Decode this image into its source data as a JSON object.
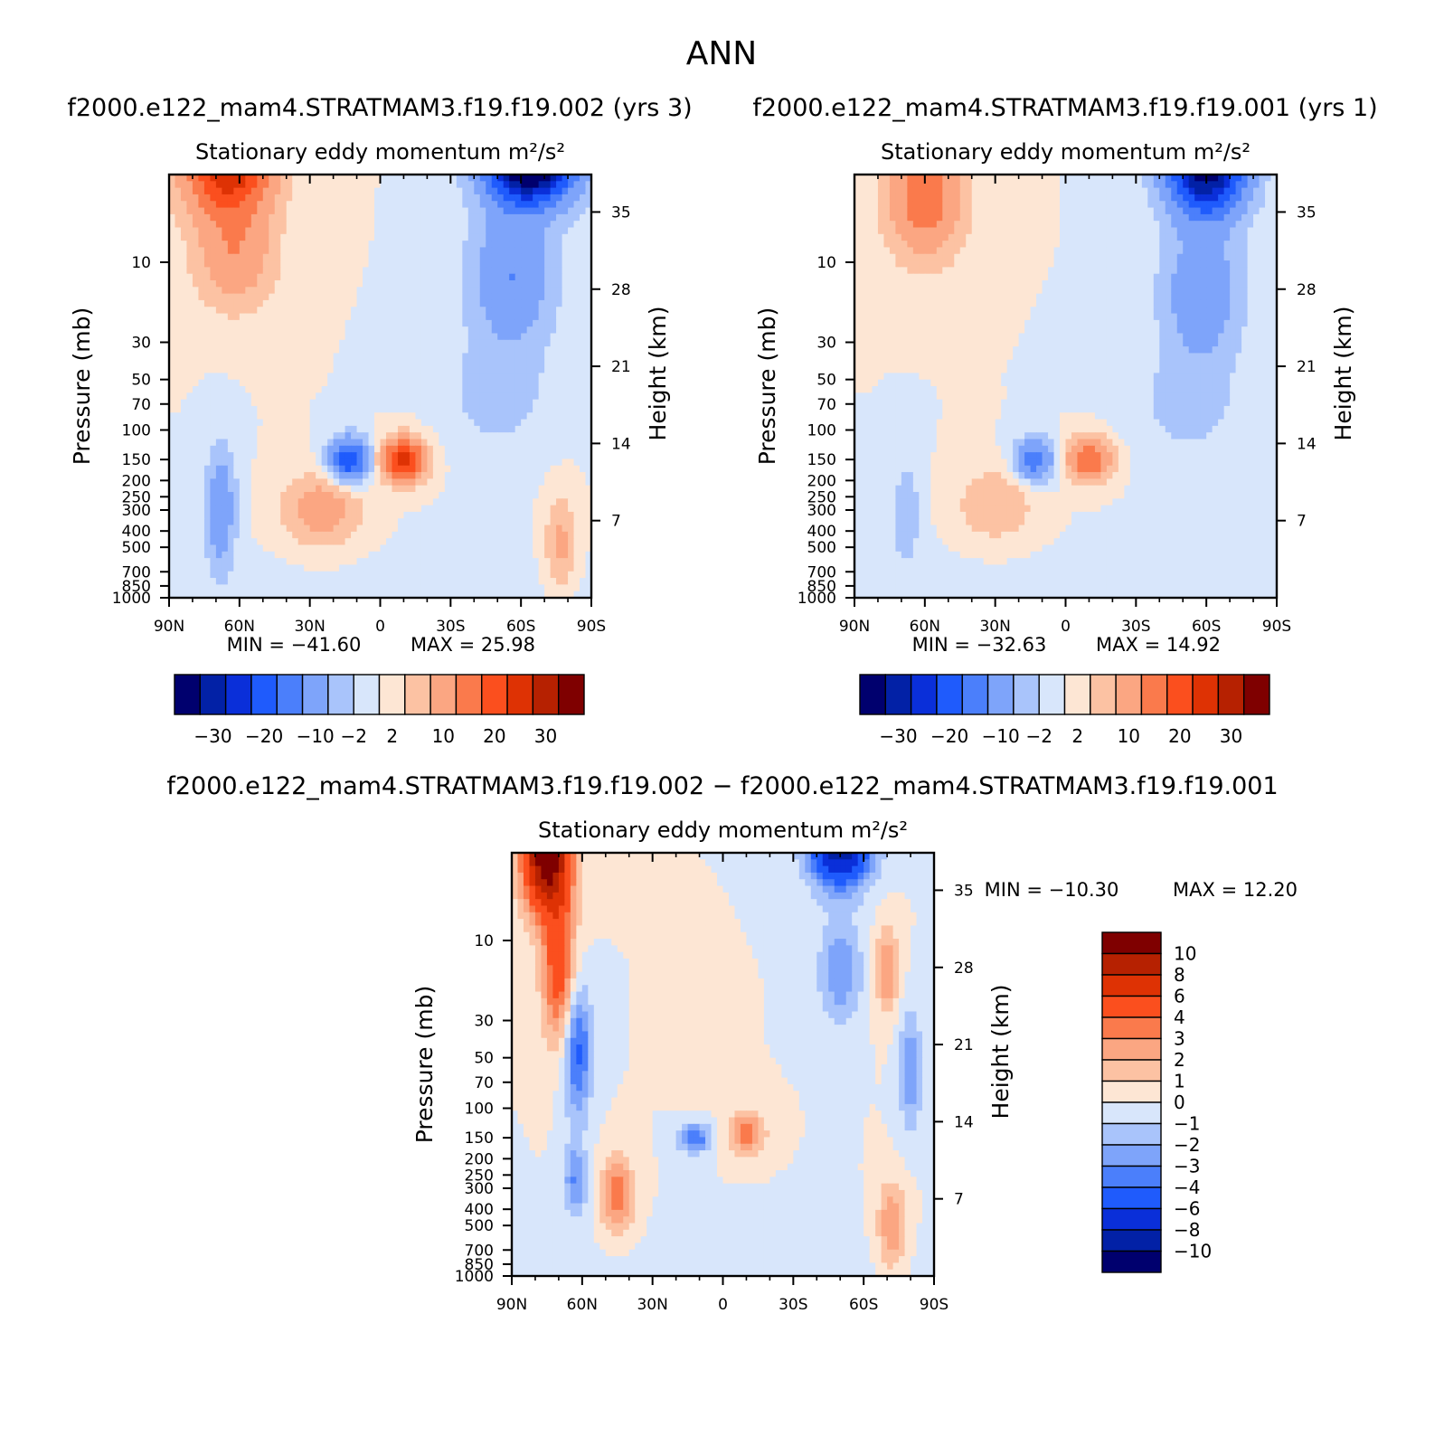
{
  "figure_title": "ANN",
  "chart_data": [
    {
      "type": "heatmap",
      "case_title": "f2000.e122_mam4.STRATMAM3.f19.f19.002  (yrs  3)",
      "title": "Stationary  eddy  momentum",
      "units": "m²/s²",
      "ylabel": "Pressure  (mb)",
      "y2label": "Height  (km)",
      "xticks": [
        "90N",
        "60N",
        "30N",
        "0",
        "30S",
        "60S",
        "90S"
      ],
      "yticks": [
        "10",
        "30",
        "50",
        "70",
        "100",
        "150",
        "200",
        "250",
        "300",
        "400",
        "500",
        "700",
        "850",
        "1000"
      ],
      "y2ticks": [
        "35",
        "28",
        "21",
        "14",
        "7"
      ],
      "min_label": "MIN  =  −41.60",
      "max_label": "MAX  =     25.98",
      "levels": [
        "−30",
        "−20",
        "−10",
        "−2",
        "2",
        "10",
        "20",
        "30"
      ],
      "blobs": [
        {
          "lat": -64,
          "p": 2.5,
          "w": 18,
          "h": 0.55,
          "v": -41.6
        },
        {
          "lat": -56,
          "p": 12,
          "w": 17,
          "h": 0.9,
          "v": -10
        },
        {
          "lat": -50,
          "p": 60,
          "w": 22,
          "h": 0.8,
          "v": -3.2
        },
        {
          "lat": 65,
          "p": 2.5,
          "w": 18,
          "h": 0.7,
          "v": 26
        },
        {
          "lat": 62,
          "p": 9,
          "w": 16,
          "h": 0.7,
          "v": 9
        },
        {
          "lat": -10,
          "p": 150,
          "w": 9,
          "h": 0.28,
          "v": 22
        },
        {
          "lat": 13,
          "p": 150,
          "w": 8,
          "h": 0.28,
          "v": -20
        },
        {
          "lat": 25,
          "p": 300,
          "w": 15,
          "h": 0.45,
          "v": 8
        },
        {
          "lat": 68,
          "p": 300,
          "w": 6,
          "h": 0.8,
          "v": -9
        },
        {
          "lat": -77,
          "p": 480,
          "w": 6,
          "h": 0.6,
          "v": 6
        },
        {
          "lat": 0,
          "p": 2000,
          "w": 200,
          "h": 1.0,
          "v": -1
        }
      ],
      "colors": [
        "#00006e",
        "#0221a6",
        "#0a2fd9",
        "#1f5bfc",
        "#4b7ffb",
        "#7ea4fa",
        "#a9c4fb",
        "#d8e6fb",
        "#fde6d4",
        "#fcc2a3",
        "#fba682",
        "#fa7a4c",
        "#fb4f1e",
        "#de3204",
        "#b62101",
        "#7f0000"
      ]
    },
    {
      "type": "heatmap",
      "case_title": "f2000.e122_mam4.STRATMAM3.f19.f19.001  (yrs  1)",
      "title": "Stationary  eddy  momentum",
      "units": "m²/s²",
      "ylabel": "Pressure  (mb)",
      "y2label": "Height  (km)",
      "xticks": [
        "90N",
        "60N",
        "30N",
        "0",
        "30S",
        "60S",
        "90S"
      ],
      "yticks": [
        "10",
        "30",
        "50",
        "70",
        "100",
        "150",
        "200",
        "250",
        "300",
        "400",
        "500",
        "700",
        "850",
        "1000"
      ],
      "y2ticks": [
        "35",
        "28",
        "21",
        "14",
        "7"
      ],
      "min_label": "MIN  =  −32.63",
      "max_label": "MAX  =     14.92",
      "levels": [
        "−30",
        "−20",
        "−10",
        "−2",
        "2",
        "10",
        "20",
        "30"
      ],
      "blobs": [
        {
          "lat": -60,
          "p": 2.8,
          "w": 16,
          "h": 0.6,
          "v": -32.6
        },
        {
          "lat": -58,
          "p": 15,
          "w": 16,
          "h": 0.9,
          "v": -9
        },
        {
          "lat": -52,
          "p": 70,
          "w": 22,
          "h": 0.8,
          "v": -3
        },
        {
          "lat": 60,
          "p": 4,
          "w": 15,
          "h": 0.8,
          "v": 14
        },
        {
          "lat": -10,
          "p": 150,
          "w": 9,
          "h": 0.28,
          "v": 14.9
        },
        {
          "lat": 13,
          "p": 150,
          "w": 8,
          "h": 0.28,
          "v": -13
        },
        {
          "lat": 30,
          "p": 280,
          "w": 15,
          "h": 0.45,
          "v": 5
        },
        {
          "lat": 68,
          "p": 320,
          "w": 6,
          "h": 0.7,
          "v": -4
        },
        {
          "lat": 0,
          "p": 2000,
          "w": 200,
          "h": 1.0,
          "v": -1
        }
      ],
      "colors": [
        "#00006e",
        "#0221a6",
        "#0a2fd9",
        "#1f5bfc",
        "#4b7ffb",
        "#7ea4fa",
        "#a9c4fb",
        "#d8e6fb",
        "#fde6d4",
        "#fcc2a3",
        "#fba682",
        "#fa7a4c",
        "#fb4f1e",
        "#de3204",
        "#b62101",
        "#7f0000"
      ]
    },
    {
      "type": "heatmap",
      "case_title": "f2000.e122_mam4.STRATMAM3.f19.f19.002  −  f2000.e122_mam4.STRATMAM3.f19.f19.001",
      "title": "Stationary  eddy  momentum",
      "units": "m²/s²",
      "ylabel": "Pressure  (mb)",
      "y2label": "Height  (km)",
      "xticks": [
        "90N",
        "60N",
        "30N",
        "0",
        "30S",
        "60S",
        "90S"
      ],
      "yticks": [
        "10",
        "30",
        "50",
        "70",
        "100",
        "150",
        "200",
        "250",
        "300",
        "400",
        "500",
        "700",
        "850",
        "1000"
      ],
      "y2ticks": [
        "35",
        "28",
        "21",
        "14",
        "7"
      ],
      "min_label": "MIN  =  −10.30",
      "max_label": "MAX  =     12.20",
      "levels": [
        "10",
        "8",
        "6",
        "4",
        "3",
        "2",
        "1",
        "0",
        "−1",
        "−2",
        "−3",
        "−4",
        "−6",
        "−8",
        "−10"
      ],
      "blobs": [
        {
          "lat": -50,
          "p": 2.5,
          "w": 13,
          "h": 0.6,
          "v": -10.3
        },
        {
          "lat": -50,
          "p": 15,
          "w": 9,
          "h": 0.7,
          "v": -3
        },
        {
          "lat": 75,
          "p": 3,
          "w": 10,
          "h": 0.8,
          "v": 12.2
        },
        {
          "lat": 70,
          "p": 15,
          "w": 7,
          "h": 1.0,
          "v": 5
        },
        {
          "lat": 62,
          "p": 45,
          "w": 6,
          "h": 0.9,
          "v": -4.5
        },
        {
          "lat": 63,
          "p": 270,
          "w": 5,
          "h": 0.5,
          "v": -3
        },
        {
          "lat": 45,
          "p": 330,
          "w": 7,
          "h": 0.5,
          "v": 4
        },
        {
          "lat": -10,
          "p": 140,
          "w": 8,
          "h": 0.3,
          "v": 3.5
        },
        {
          "lat": 12,
          "p": 150,
          "w": 7,
          "h": 0.2,
          "v": -4
        },
        {
          "lat": -70,
          "p": 15,
          "w": 5,
          "h": 0.6,
          "v": 3
        },
        {
          "lat": -80,
          "p": 60,
          "w": 5,
          "h": 0.8,
          "v": -3
        },
        {
          "lat": -72,
          "p": 500,
          "w": 6,
          "h": 0.6,
          "v": 3
        },
        {
          "lat": 10,
          "p": 40,
          "w": 8,
          "h": 0.6,
          "v": 0.8
        },
        {
          "lat": 0,
          "p": 2000,
          "w": 200,
          "h": 1.0,
          "v": -0.5
        }
      ],
      "colors": [
        "#7f0000",
        "#b62101",
        "#de3204",
        "#fb4f1e",
        "#fa7a4c",
        "#fba682",
        "#fcc2a3",
        "#fde6d4",
        "#d8e6fb",
        "#a9c4fb",
        "#7ea4fa",
        "#4b7ffb",
        "#1f5bfc",
        "#0a2fd9",
        "#0221a6",
        "#00006e"
      ]
    }
  ]
}
